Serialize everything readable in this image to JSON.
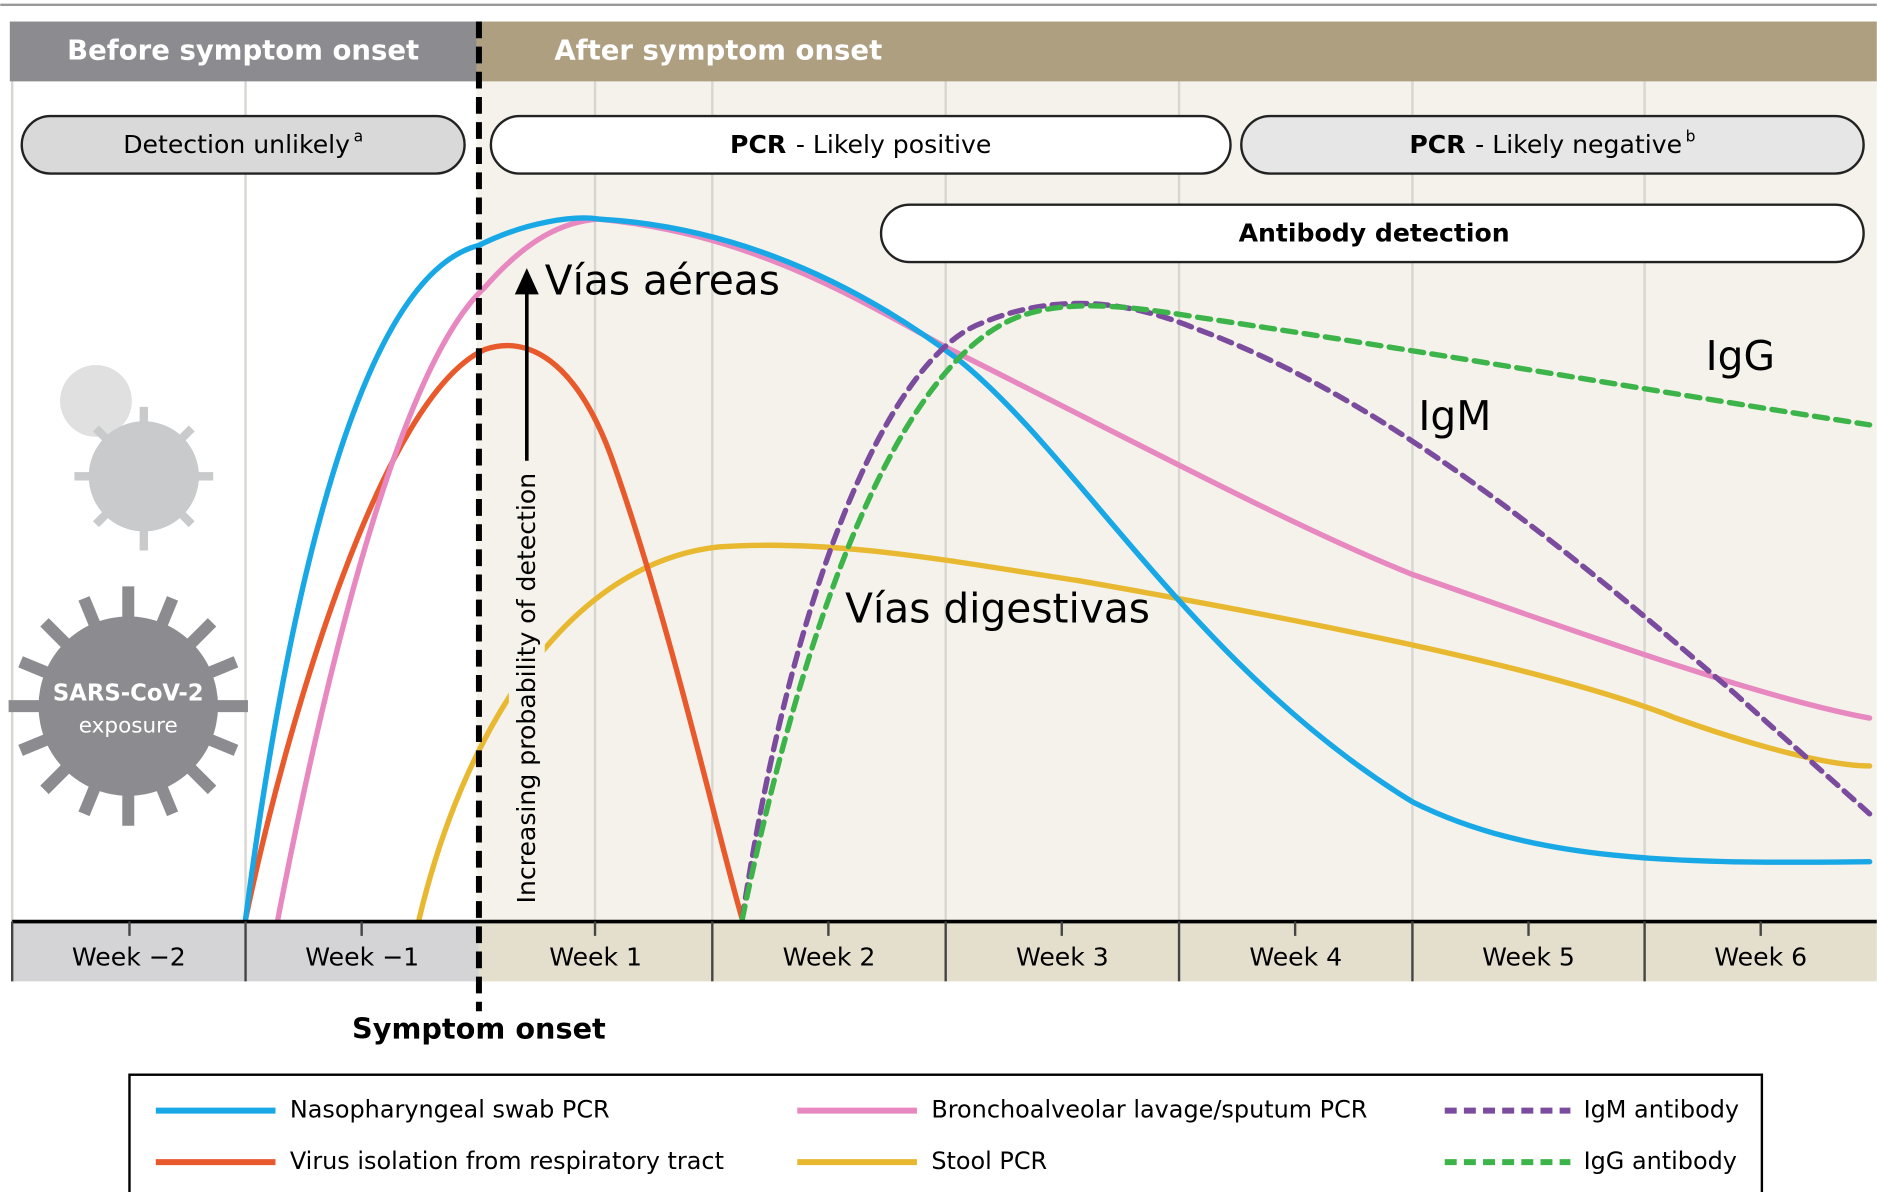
{
  "header": {
    "before": "Before symptom onset",
    "after": "After symptom onset"
  },
  "bands": {
    "unlikely": {
      "text": "Detection unlikely",
      "note": "a"
    },
    "positive": {
      "bold": "PCR",
      "text": "- Likely positive"
    },
    "negative": {
      "bold": "PCR",
      "text": "- Likely negative",
      "note": "b"
    },
    "antibody": {
      "text": "Antibody detection"
    }
  },
  "y_label": "Increasing probability of detection",
  "annotations": {
    "airways": "Vías aéreas",
    "digestive": "Vías digestivas",
    "igm": "IgM",
    "igg": "IgG"
  },
  "exposure": [
    "SARS-CoV-2",
    "exposure"
  ],
  "weeks": [
    "Week −2",
    "Week −1",
    "Week 1",
    "Week 2",
    "Week 3",
    "Week 4",
    "Week 5",
    "Week 6"
  ],
  "onset": "Symptom onset",
  "legend": [
    "Nasopharyngeal swab PCR",
    "Virus isolation from respiratory tract",
    "Bronchoalveolar lavage/sputum PCR",
    "Stool PCR",
    "IgM antibody",
    "IgG antibody"
  ]
}
